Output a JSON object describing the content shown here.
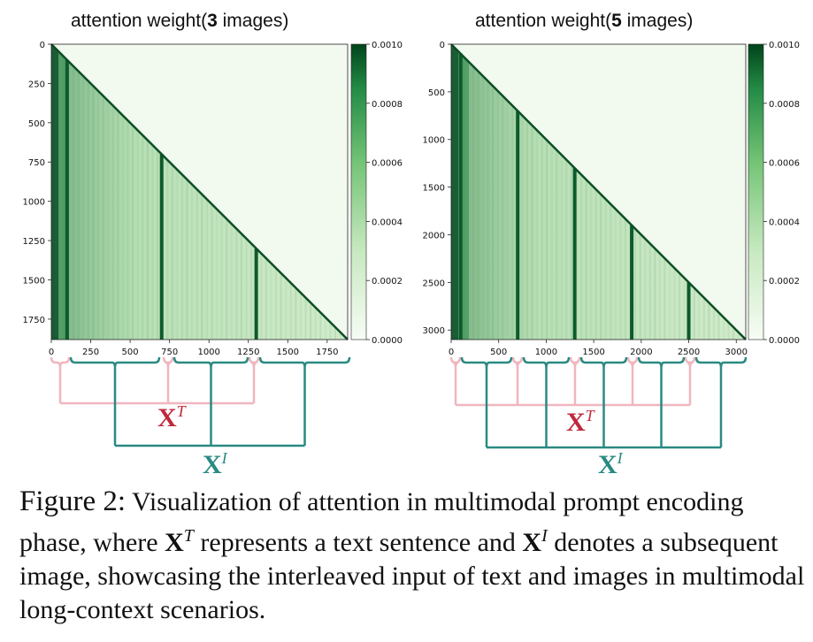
{
  "panels": [
    {
      "title_prefix": "attention weight(",
      "title_count": "3",
      "title_suffix": " images)",
      "x_ticks": [
        "0",
        "250",
        "500",
        "750",
        "1000",
        "1250",
        "1500",
        "1750"
      ],
      "y_ticks": [
        "0",
        "250",
        "500",
        "750",
        "1000",
        "1250",
        "1500",
        "1750"
      ],
      "colorbar_ticks": [
        "0.0000",
        "0.0002",
        "0.0004",
        "0.0006",
        "0.0008",
        "0.0010"
      ],
      "text_label": "X",
      "text_sup": "T",
      "image_label": "X",
      "image_sup": "I"
    },
    {
      "title_prefix": "attention weight(",
      "title_count": "5",
      "title_suffix": " images)",
      "x_ticks": [
        "0",
        "500",
        "1000",
        "1500",
        "2000",
        "2500",
        "3000"
      ],
      "y_ticks": [
        "0",
        "500",
        "1000",
        "1500",
        "2000",
        "2500",
        "3000"
      ],
      "colorbar_ticks": [
        "0.0000",
        "0.0002",
        "0.0004",
        "0.0006",
        "0.0008",
        "0.0010"
      ],
      "text_label": "X",
      "text_sup": "T",
      "image_label": "X",
      "image_sup": "I"
    }
  ],
  "colors": {
    "text_bracket": "#f0b6bf",
    "image_bracket": "#2a8a82",
    "text_label": "#c0283c",
    "image_label": "#2a8a82",
    "heat_light": "#f2f9ee",
    "heat_dark": "#0b4e26"
  },
  "chart_data": [
    {
      "type": "heatmap",
      "title": "attention weight(3 images)",
      "xlim": [
        0,
        1880
      ],
      "ylim": [
        0,
        1880
      ],
      "x_ticks": [
        0,
        250,
        500,
        750,
        1000,
        1250,
        1500,
        1750
      ],
      "y_ticks": [
        0,
        250,
        500,
        750,
        1000,
        1250,
        1500,
        1750
      ],
      "colorbar_range": [
        0.0,
        0.001
      ],
      "colorbar_ticks": [
        0.0,
        0.0002,
        0.0004,
        0.0006,
        0.0008,
        0.001
      ],
      "image_token_columns": [
        100,
        700,
        1300
      ],
      "mask": "lower-triangular (causal)"
    },
    {
      "type": "heatmap",
      "title": "attention weight(5 images)",
      "xlim": [
        0,
        3100
      ],
      "ylim": [
        0,
        3100
      ],
      "x_ticks": [
        0,
        500,
        1000,
        1500,
        2000,
        2500,
        3000
      ],
      "y_ticks": [
        0,
        500,
        1000,
        1500,
        2000,
        2500,
        3000
      ],
      "colorbar_range": [
        0.0,
        0.001
      ],
      "colorbar_ticks": [
        0.0,
        0.0002,
        0.0004,
        0.0006,
        0.0008,
        0.001
      ],
      "image_token_columns": [
        100,
        700,
        1300,
        1900,
        2500
      ],
      "mask": "lower-triangular (causal)"
    }
  ],
  "caption": {
    "lead": "Figure 2:",
    "part1": "  Visualization of attention in multimodal prompt encoding phase, where ",
    "xt": "X",
    "xt_sup": "T",
    "part2": " represents a text sentence and ",
    "xi": "X",
    "xi_sup": "I",
    "part3": " denotes a subsequent image, showcasing the interleaved input of text and images in multimodal long-context scenarios."
  }
}
